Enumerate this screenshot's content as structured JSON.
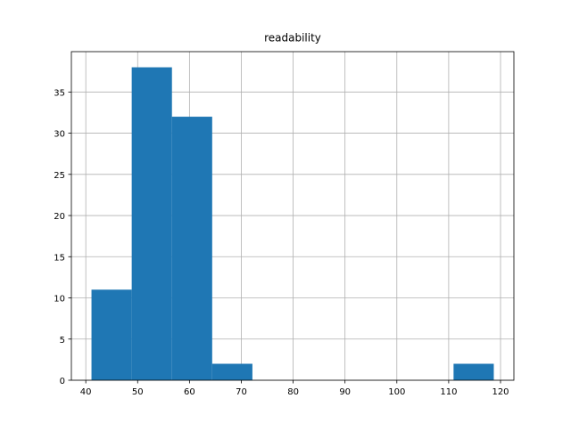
{
  "chart_data": {
    "type": "histogram",
    "title": "readability",
    "bins": [
      41.1,
      48.86,
      56.62,
      64.38,
      72.14,
      79.9,
      87.66,
      95.42,
      103.18,
      110.94,
      118.7
    ],
    "values": [
      11,
      38,
      32,
      2,
      0,
      0,
      0,
      0,
      0,
      2
    ],
    "color": "#1f77b4",
    "xlim": [
      37.22,
      122.58
    ],
    "xticks": [
      40,
      50,
      60,
      70,
      80,
      90,
      100,
      110,
      120
    ],
    "ylim": [
      0,
      39.9
    ],
    "yticks": [
      0,
      5,
      10,
      15,
      20,
      25,
      30,
      35
    ],
    "grid": true
  }
}
